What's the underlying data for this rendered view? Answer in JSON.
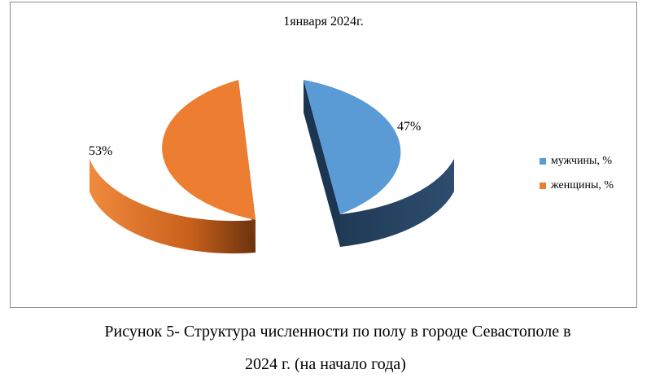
{
  "chart_data": {
    "type": "pie",
    "title": "1января 2024г.",
    "categories": [
      "мужчины, %",
      "женщины, %"
    ],
    "values": [
      47,
      53
    ],
    "data_labels": [
      "47%",
      "53%"
    ],
    "legend_position": "right",
    "colors": [
      "#5b9bd5",
      "#ed7d31"
    ],
    "exploded": true,
    "three_d": true
  },
  "caption": {
    "line1": "Рисунок 5- Структура численности по полу в городе Севастополе в",
    "line2": "2024 г. (на начало года)"
  }
}
